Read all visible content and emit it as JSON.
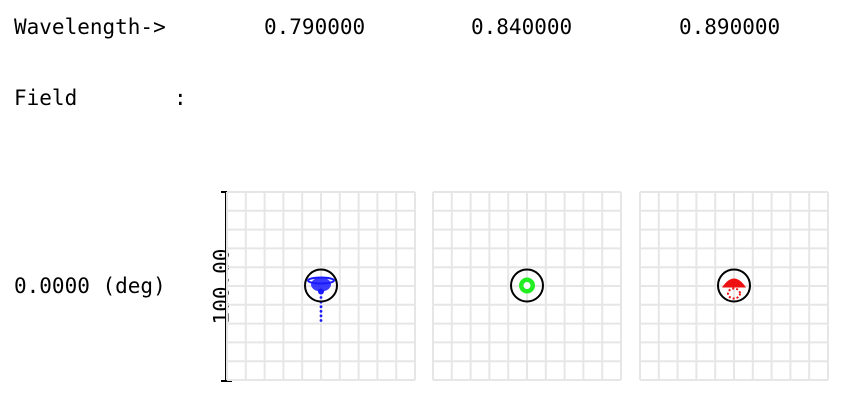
{
  "header": {
    "wavelength_label": "Wavelength->",
    "wavelengths": [
      "0.790000",
      "0.840000",
      "0.890000"
    ],
    "field_label": "Field",
    "field_colon": ":"
  },
  "field_row": {
    "field_value": "0.0000 (deg)",
    "scale_label": "100.00"
  },
  "spot_panels": [
    {
      "wavelength": "0.790000",
      "color": "#1a1aff",
      "pattern": "spread-with-tail"
    },
    {
      "wavelength": "0.840000",
      "color": "#22ee22",
      "pattern": "tight-ring"
    },
    {
      "wavelength": "0.890000",
      "color": "#ee1111",
      "pattern": "mushroom"
    }
  ],
  "colors": {
    "grid": "#e6e6e6",
    "airy_circle": "#000000",
    "axis": "#000000"
  }
}
